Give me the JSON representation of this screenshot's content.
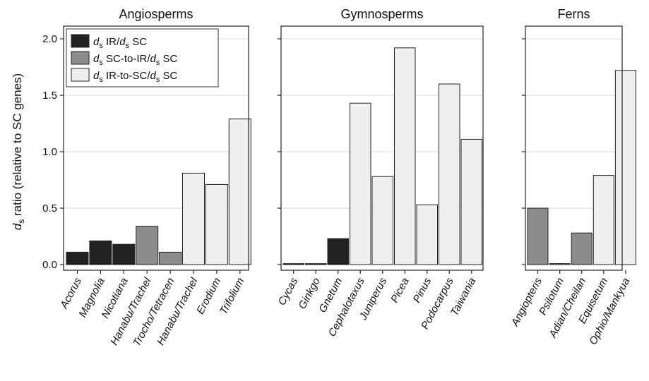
{
  "chart_data": {
    "type": "bar",
    "ylabel_parts": {
      "d": "d",
      "sub": "s",
      "rest": " ratio (relative to SC genes)"
    },
    "ylim": [
      0,
      2.0
    ],
    "yticks": [
      "0.0",
      "0.5",
      "1.0",
      "1.5",
      "2.0"
    ],
    "ytick_values": [
      0,
      0.5,
      1.0,
      1.5,
      2.0
    ],
    "grid": "horizontal",
    "legend": {
      "placement": "top-left",
      "entries": [
        {
          "key": "ir_sc",
          "d1": "d",
          "s1": "s",
          "mid": " IR/",
          "d2": "d",
          "s2": "s",
          "tail": " SC",
          "color": "#222222"
        },
        {
          "key": "sc_to_ir",
          "d1": "d",
          "s1": "s",
          "mid": " SC-to-IR/",
          "d2": "d",
          "s2": "s",
          "tail": " SC",
          "color": "#8c8c8c"
        },
        {
          "key": "ir_to_sc",
          "d1": "d",
          "s1": "s",
          "mid": " IR-to-SC/",
          "d2": "d",
          "s2": "s",
          "tail": " SC",
          "color": "#efefef"
        }
      ]
    },
    "panels": [
      {
        "title": "Angiosperms",
        "categories": [
          "Acorus",
          "Magnolia",
          "Nicotiana",
          "Hanabu/Trachel",
          "Trocho/Tetracen",
          "Hanabu/Trachel",
          "Erodium",
          "Trifolium"
        ],
        "values": [
          0.11,
          0.21,
          0.18,
          0.34,
          0.11,
          0.81,
          0.71,
          1.29
        ],
        "series": [
          "ir_sc",
          "ir_sc",
          "ir_sc",
          "sc_to_ir",
          "sc_to_ir",
          "ir_to_sc",
          "ir_to_sc",
          "ir_to_sc"
        ]
      },
      {
        "title": "Gymnosperms",
        "categories": [
          "Cycas",
          "Ginkgo",
          "Gnetum",
          "Cephalotaxus",
          "Juniperus",
          "Picea",
          "Pinus",
          "Podocarpus",
          "Taiwania"
        ],
        "values": [
          0.005,
          0.005,
          0.23,
          1.43,
          0.78,
          1.92,
          0.53,
          1.6,
          1.11
        ],
        "series": [
          "ir_sc",
          "ir_sc",
          "ir_sc",
          "ir_to_sc",
          "ir_to_sc",
          "ir_to_sc",
          "ir_to_sc",
          "ir_to_sc",
          "ir_to_sc"
        ]
      },
      {
        "title": "Ferns",
        "categories": [
          "Angiopteris",
          "Psilotum",
          "Adian/Cheilan",
          "Equisetum",
          "Ophio/Mankyua"
        ],
        "values": [
          0.5,
          0.005,
          0.28,
          0.79,
          1.72
        ],
        "series": [
          "sc_to_ir",
          "sc_to_ir",
          "sc_to_ir",
          "ir_to_sc",
          "ir_to_sc"
        ]
      }
    ]
  }
}
